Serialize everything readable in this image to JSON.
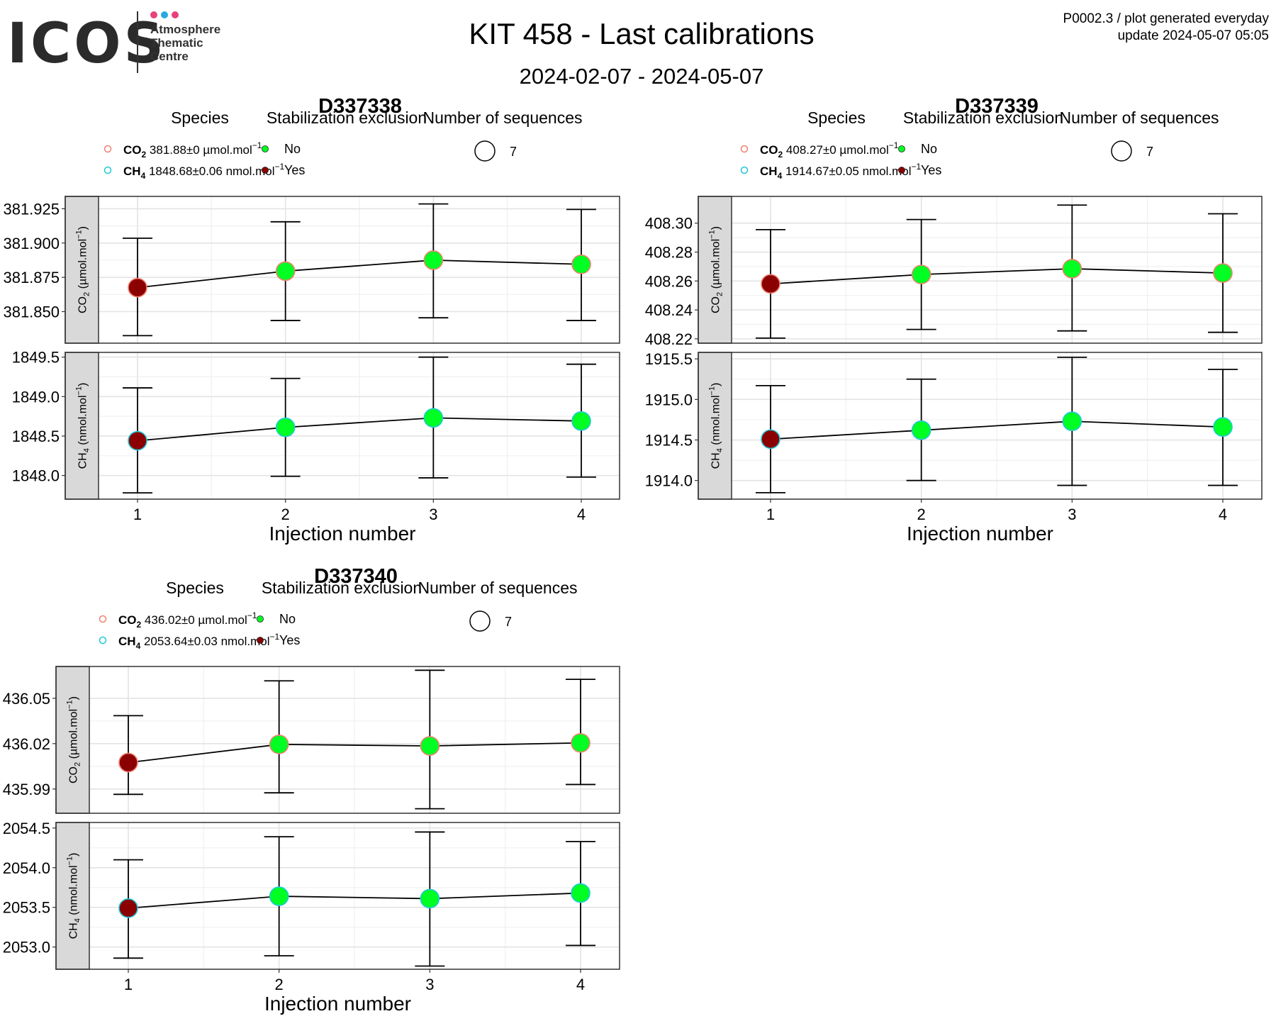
{
  "header": {
    "logo_text": "ICOS",
    "logo_sub": [
      "Atmosphere",
      "Thematic",
      "Centre"
    ],
    "logo_dot_colors": [
      "#e8417b",
      "#2aa9e0",
      "#e8417b"
    ],
    "title": "KIT 458 - Last calibrations",
    "subtitle": "2024-02-07 - 2024-05-07",
    "meta_line1": "P0002.3 / plot generated everyday",
    "meta_line2": "update  2024-05-07 05:05"
  },
  "legend_labels": {
    "species": "Species",
    "stabilization": "Stabilization exclusion",
    "sequences": "Number of sequences",
    "no": "No",
    "yes": "Yes",
    "seq_count": "7"
  },
  "colors": {
    "no": "#00ff22",
    "yes": "#8b0000",
    "co2_outline": "#f08070",
    "ch4_outline": "#20c8d8"
  },
  "chart_data": [
    {
      "type": "scatter",
      "title": "D337338",
      "xlabel": "Injection number",
      "x": [
        1,
        2,
        3,
        4
      ],
      "legend": {
        "co2": {
          "species": "CO2",
          "value": "381.88",
          "pm": "±",
          "unc": "0",
          "unit": "µmol.mol",
          "exp": "−1"
        },
        "ch4": {
          "species": "CH4",
          "value": "1848.68",
          "pm": "±",
          "unc": "0.06",
          "unit": "nmol.mol",
          "exp": "−1"
        }
      },
      "panels": [
        {
          "strip": {
            "species": "CO2",
            "unit": "µmol.mol",
            "exp": "−1"
          },
          "ylim": [
            381.827,
            381.934
          ],
          "yticks": [
            "381.850",
            "381.875",
            "381.900",
            "381.925"
          ],
          "y": [
            381.8675,
            381.8795,
            381.8875,
            381.8845
          ],
          "ymin": [
            381.8325,
            381.8435,
            381.8455,
            381.8435
          ],
          "ymax": [
            381.9035,
            381.9155,
            381.9285,
            381.9245
          ],
          "excluded": [
            true,
            false,
            false,
            false
          ]
        },
        {
          "strip": {
            "species": "CH4",
            "unit": "nmol.mol",
            "exp": "−1"
          },
          "ylim": [
            1847.7,
            1849.56
          ],
          "yticks": [
            "1848.0",
            "1848.5",
            "1849.0",
            "1849.5"
          ],
          "y": [
            1848.44,
            1848.61,
            1848.73,
            1848.69
          ],
          "ymin": [
            1847.78,
            1847.99,
            1847.97,
            1847.98
          ],
          "ymax": [
            1849.11,
            1849.23,
            1849.5,
            1849.41
          ],
          "excluded": [
            true,
            false,
            false,
            false
          ]
        }
      ]
    },
    {
      "type": "scatter",
      "title": "D337339",
      "xlabel": "Injection number",
      "x": [
        1,
        2,
        3,
        4
      ],
      "legend": {
        "co2": {
          "species": "CO2",
          "value": "408.27",
          "pm": "±",
          "unc": "0",
          "unit": "µmol.mol",
          "exp": "−1"
        },
        "ch4": {
          "species": "CH4",
          "value": "1914.67",
          "pm": "±",
          "unc": "0.05",
          "unit": "nmol.mol",
          "exp": "−1"
        }
      },
      "panels": [
        {
          "strip": {
            "species": "CO2",
            "unit": "µmol.mol",
            "exp": "−1"
          },
          "ylim": [
            408.217,
            408.3185
          ],
          "yticks": [
            "408.22",
            "408.24",
            "408.26",
            "408.28",
            "408.30"
          ],
          "y": [
            408.258,
            408.2645,
            408.2685,
            408.2655
          ],
          "ymin": [
            408.2205,
            408.2265,
            408.2255,
            408.2245
          ],
          "ymax": [
            408.2955,
            408.3025,
            408.3125,
            408.3065
          ],
          "excluded": [
            true,
            false,
            false,
            false
          ]
        },
        {
          "strip": {
            "species": "CH4",
            "unit": "nmol.mol",
            "exp": "−1"
          },
          "ylim": [
            1913.77,
            1915.58
          ],
          "yticks": [
            "1914.0",
            "1914.5",
            "1915.0",
            "1915.5"
          ],
          "y": [
            1914.51,
            1914.62,
            1914.73,
            1914.66
          ],
          "ymin": [
            1913.85,
            1914.0,
            1913.94,
            1913.94
          ],
          "ymax": [
            1915.17,
            1915.25,
            1915.52,
            1915.37
          ],
          "excluded": [
            true,
            false,
            false,
            false
          ]
        }
      ]
    },
    {
      "type": "scatter",
      "title": "D337340",
      "xlabel": "Injection number",
      "x": [
        1,
        2,
        3,
        4
      ],
      "legend": {
        "co2": {
          "species": "CO2",
          "value": "436.02",
          "pm": "±",
          "unc": "0",
          "unit": "µmol.mol",
          "exp": "−1"
        },
        "ch4": {
          "species": "CH4",
          "value": "2053.64",
          "pm": "±",
          "unc": "0.03",
          "unit": "nmol.mol",
          "exp": "−1"
        }
      },
      "panels": [
        {
          "strip": {
            "species": "CO2",
            "unit": "µmol.mol",
            "exp": "−1"
          },
          "ylim": [
            435.974,
            436.071
          ],
          "yticks": [
            "435.99",
            "436.02",
            "436.05"
          ],
          "y": [
            436.0075,
            436.0195,
            436.0185,
            436.0205
          ],
          "ymin": [
            435.9865,
            435.9875,
            435.977,
            435.993
          ],
          "ymax": [
            436.0385,
            436.0615,
            436.0685,
            436.0625
          ],
          "excluded": [
            true,
            false,
            false,
            false
          ]
        },
        {
          "strip": {
            "species": "CH4",
            "unit": "nmol.mol",
            "exp": "−1"
          },
          "ylim": [
            2052.72,
            2054.57
          ],
          "yticks": [
            "2053.0",
            "2053.5",
            "2054.0",
            "2054.5"
          ],
          "y": [
            2053.49,
            2053.64,
            2053.61,
            2053.68
          ],
          "ymin": [
            2052.86,
            2052.89,
            2052.76,
            2053.02
          ],
          "ymax": [
            2054.1,
            2054.39,
            2054.45,
            2054.33
          ],
          "excluded": [
            true,
            false,
            false,
            false
          ]
        }
      ]
    }
  ]
}
